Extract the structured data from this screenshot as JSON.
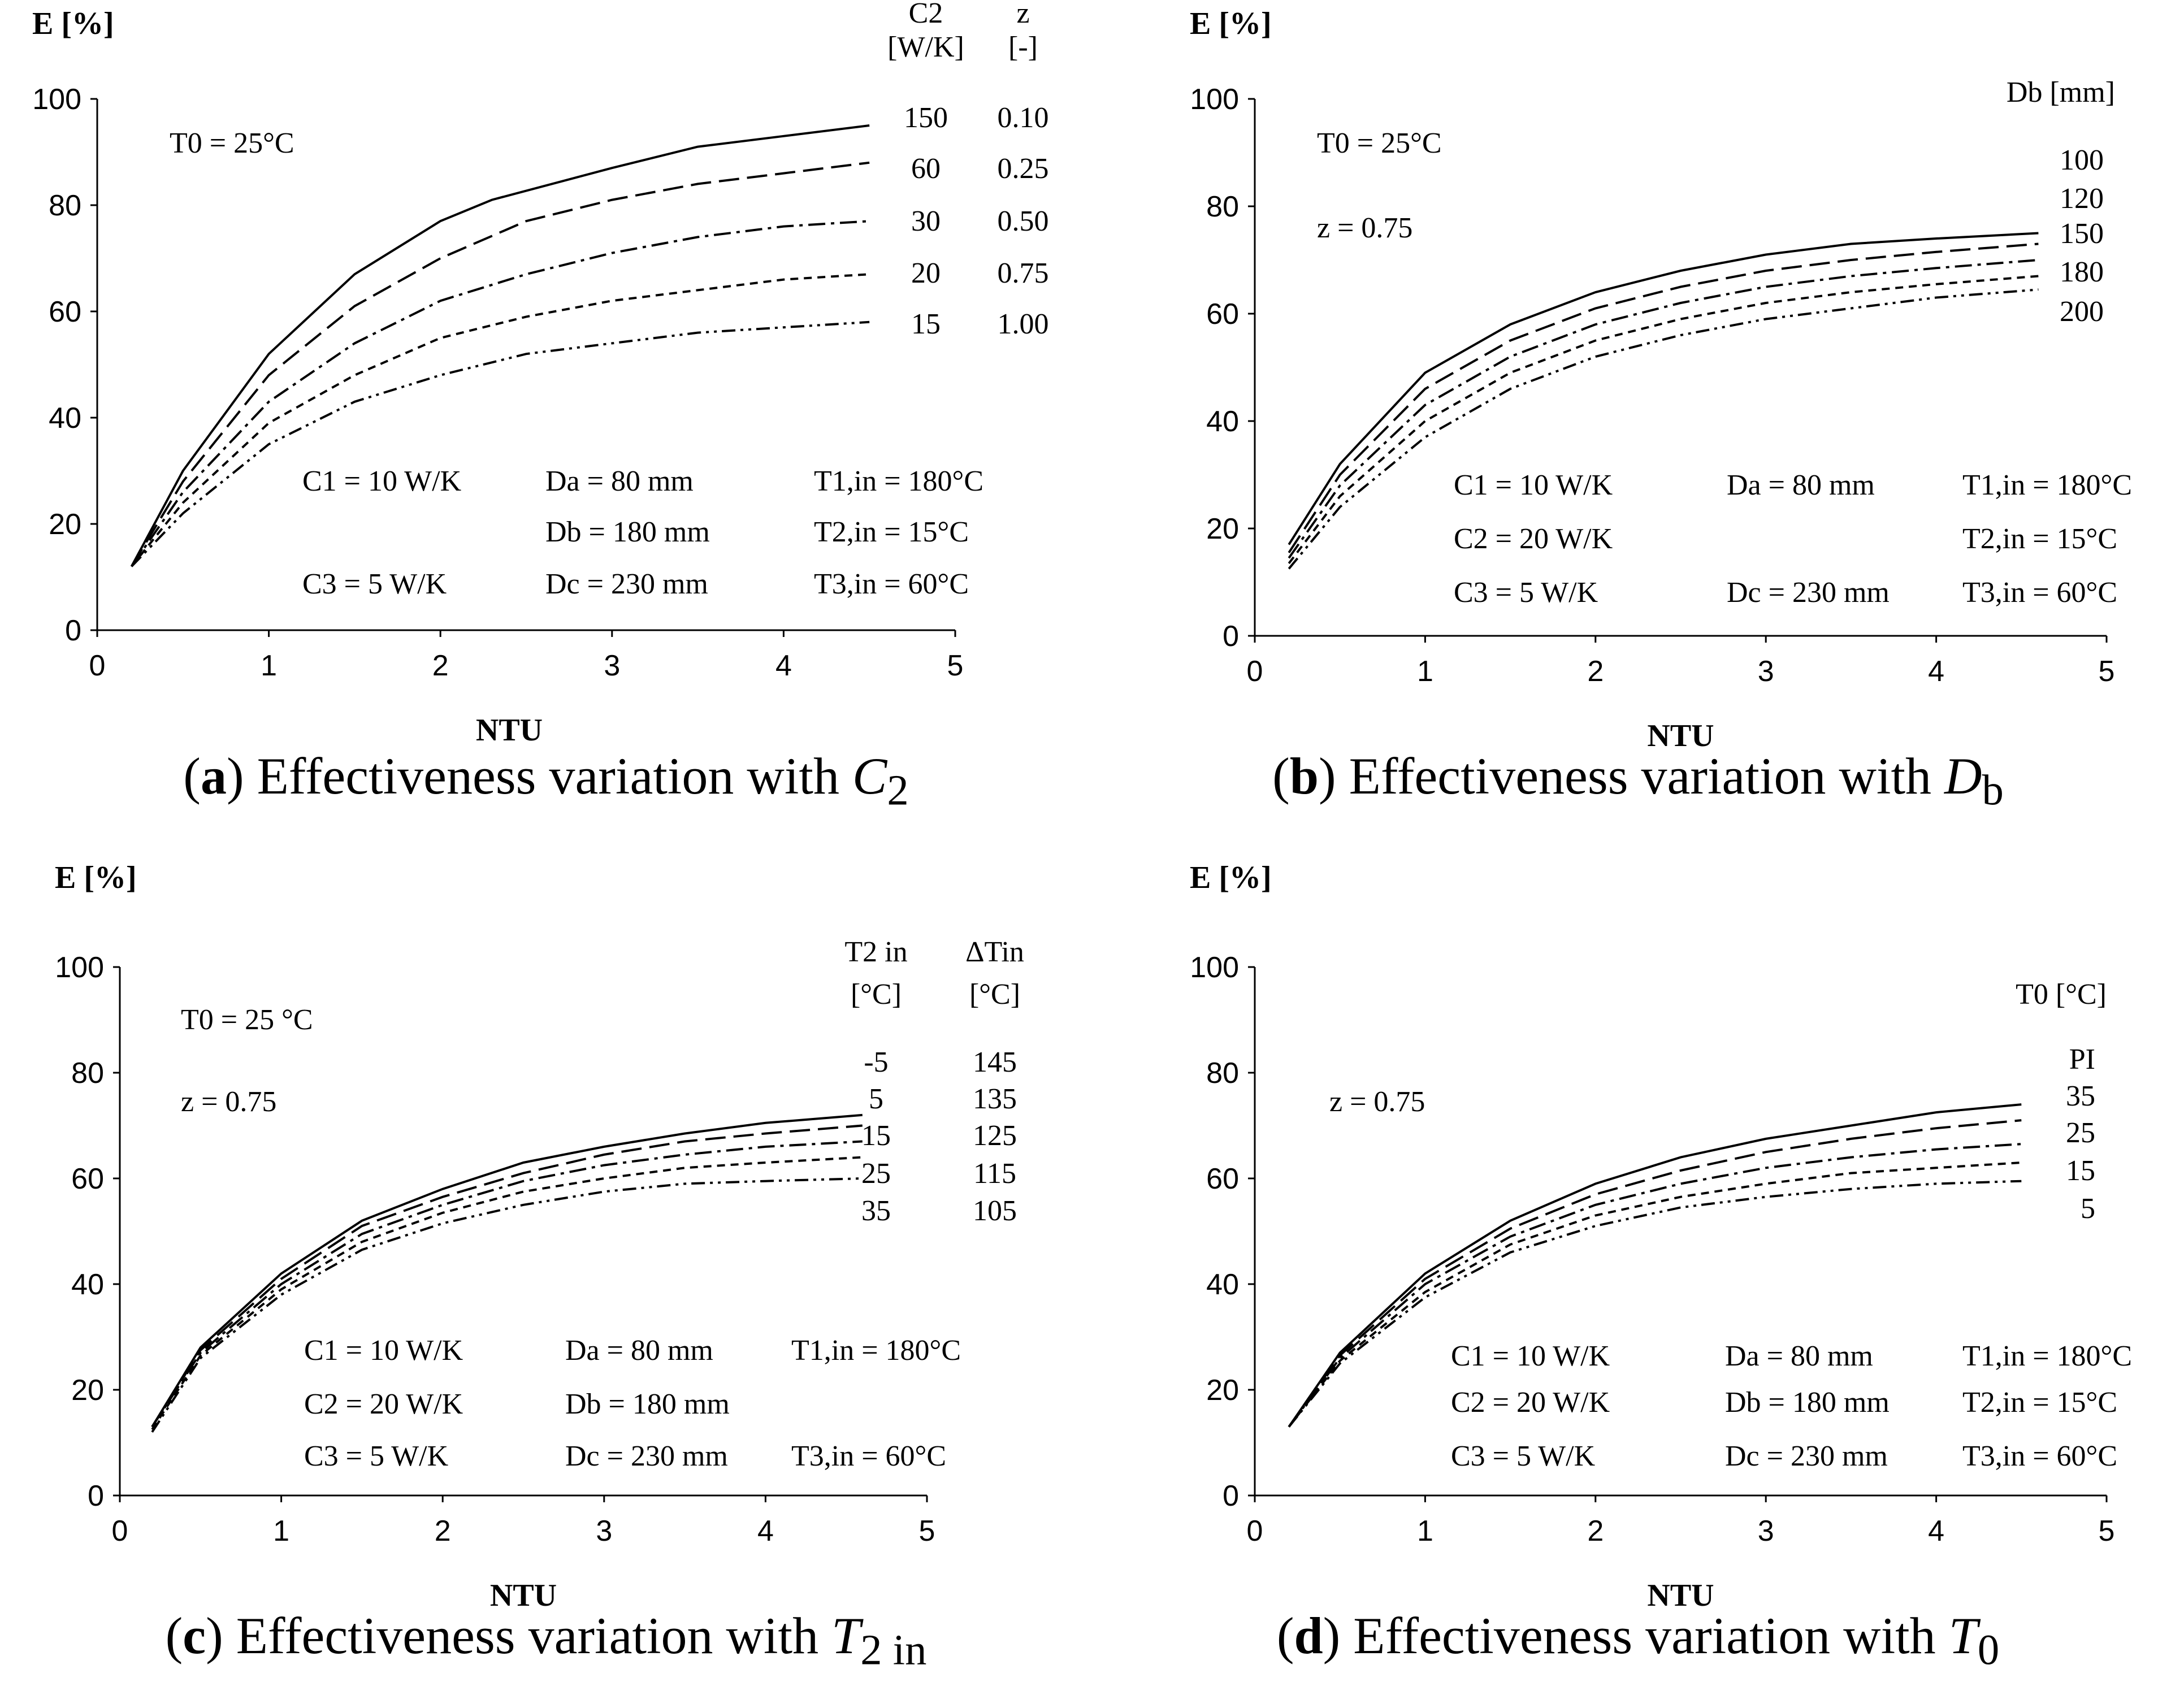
{
  "chart_data": [
    {
      "type": "line",
      "panel": "a",
      "caption": {
        "letter": "a",
        "text": "Effectiveness variation with ",
        "symbol": "C",
        "sub": "2"
      },
      "ylabel": "E [%]",
      "xlabel": "NTU",
      "xlim": [
        0,
        5
      ],
      "ylim": [
        0,
        100
      ],
      "xticks": [
        "0",
        "1",
        "2",
        "3",
        "4",
        "5"
      ],
      "yticks": [
        "0",
        "20",
        "40",
        "60",
        "80",
        "100"
      ],
      "legend_headers": [
        [
          "C2",
          "[W/K]"
        ],
        [
          "z",
          "[-]"
        ]
      ],
      "legend_rows": [
        [
          "150",
          "0.10"
        ],
        [
          "60",
          "0.25"
        ],
        [
          "30",
          "0.50"
        ],
        [
          "20",
          "0.75"
        ],
        [
          "15",
          "1.00"
        ]
      ],
      "notes_top": [
        "T0 = 25°C"
      ],
      "notes_bottom": [
        [
          "C1 = 10 W/K",
          "Da =   80 mm",
          "T1,in = 180°C"
        ],
        [
          "",
          "Db = 180 mm",
          "T2,in =   15°C"
        ],
        [
          "C3 =   5 W/K",
          "Dc = 230 mm",
          "T3,in =   60°C"
        ]
      ],
      "series": [
        {
          "dash": "solid",
          "x": [
            0.2,
            0.5,
            1.0,
            1.5,
            2.0,
            2.3,
            3.0,
            3.5,
            4.0,
            4.5
          ],
          "y": [
            12,
            30,
            52,
            67,
            77,
            81,
            87,
            91,
            93,
            95
          ]
        },
        {
          "dash": "long-dash",
          "x": [
            0.2,
            0.5,
            1.0,
            1.5,
            2.0,
            2.5,
            3.0,
            3.5,
            4.0,
            4.5
          ],
          "y": [
            12,
            28,
            48,
            61,
            70,
            77,
            81,
            84,
            86,
            88
          ]
        },
        {
          "dash": "dash-dot",
          "x": [
            0.2,
            0.5,
            1.0,
            1.5,
            2.0,
            2.5,
            3.0,
            3.5,
            4.0,
            4.5
          ],
          "y": [
            12,
            26,
            43,
            54,
            62,
            67,
            71,
            74,
            76,
            77
          ]
        },
        {
          "dash": "short-dash",
          "x": [
            0.2,
            0.5,
            1.0,
            1.5,
            2.0,
            2.5,
            3.0,
            3.5,
            4.0,
            4.5
          ],
          "y": [
            12,
            24,
            39,
            48,
            55,
            59,
            62,
            64,
            66,
            67
          ]
        },
        {
          "dash": "dash-dot-dot",
          "x": [
            0.2,
            0.5,
            1.0,
            1.5,
            2.0,
            2.5,
            3.0,
            3.5,
            4.0,
            4.5
          ],
          "y": [
            12,
            22,
            35,
            43,
            48,
            52,
            54,
            56,
            57,
            58
          ]
        }
      ]
    },
    {
      "type": "line",
      "panel": "b",
      "caption": {
        "letter": "b",
        "text": "Effectiveness variation with ",
        "symbol": "D",
        "sub": "b"
      },
      "ylabel": "E [%]",
      "xlabel": "NTU",
      "xlim": [
        0,
        5
      ],
      "ylim": [
        0,
        100
      ],
      "xticks": [
        "0",
        "1",
        "2",
        "3",
        "4",
        "5"
      ],
      "yticks": [
        "0",
        "20",
        "40",
        "60",
        "80",
        "100"
      ],
      "legend_headers": [
        [
          "Db [mm]"
        ]
      ],
      "legend_rows": [
        [
          "100"
        ],
        [
          "120"
        ],
        [
          "150"
        ],
        [
          "180"
        ],
        [
          "200"
        ]
      ],
      "notes_top": [
        "T0 = 25°C",
        "z = 0.75"
      ],
      "notes_bottom": [
        [
          "C1 = 10 W/K",
          "Da = 80 mm",
          "T1,in = 180°C"
        ],
        [
          "C2 = 20 W/K",
          "",
          "T2,in =   15°C"
        ],
        [
          "C3 =  5  W/K",
          "Dc = 230 mm",
          "T3,in =   60°C"
        ]
      ],
      "series": [
        {
          "dash": "solid",
          "x": [
            0.2,
            0.5,
            1.0,
            1.5,
            2.0,
            2.5,
            3.0,
            3.5,
            4.0,
            4.6
          ],
          "y": [
            17,
            32,
            49,
            58,
            64,
            68,
            71,
            73,
            74,
            75
          ]
        },
        {
          "dash": "long-dash",
          "x": [
            0.2,
            0.5,
            1.0,
            1.5,
            2.0,
            2.5,
            3.0,
            3.5,
            4.0,
            4.6
          ],
          "y": [
            15.5,
            30,
            46,
            55,
            61,
            65,
            68,
            70,
            71.5,
            73
          ]
        },
        {
          "dash": "dash-dot",
          "x": [
            0.2,
            0.5,
            1.0,
            1.5,
            2.0,
            2.5,
            3.0,
            3.5,
            4.0,
            4.6
          ],
          "y": [
            14.5,
            28,
            43,
            52,
            58,
            62,
            65,
            67,
            68.5,
            70
          ]
        },
        {
          "dash": "short-dash",
          "x": [
            0.2,
            0.5,
            1.0,
            1.5,
            2.0,
            2.5,
            3.0,
            3.5,
            4.0,
            4.6
          ],
          "y": [
            13.5,
            26,
            40,
            49,
            55,
            59,
            62,
            64,
            65.5,
            67
          ]
        },
        {
          "dash": "dash-dot-dot",
          "x": [
            0.2,
            0.5,
            1.0,
            1.5,
            2.0,
            2.5,
            3.0,
            3.5,
            4.0,
            4.6
          ],
          "y": [
            12.5,
            24,
            37,
            46,
            52,
            56,
            59,
            61,
            63,
            64.5
          ]
        }
      ]
    },
    {
      "type": "line",
      "panel": "c",
      "caption": {
        "letter": "c",
        "text": "Effectiveness variation with ",
        "symbol": "T",
        "sub": "2 in"
      },
      "ylabel": "E [%]",
      "xlabel": "NTU",
      "xlim": [
        0,
        5
      ],
      "ylim": [
        0,
        100
      ],
      "xticks": [
        "0",
        "1",
        "2",
        "3",
        "4",
        "5"
      ],
      "yticks": [
        "0",
        "20",
        "40",
        "60",
        "80",
        "100"
      ],
      "legend_headers": [
        [
          "T2 in",
          "[°C]"
        ],
        [
          "ΔTin",
          "[°C]"
        ]
      ],
      "legend_rows": [
        [
          "-5",
          "145"
        ],
        [
          "5",
          "135"
        ],
        [
          "15",
          "125"
        ],
        [
          "25",
          "115"
        ],
        [
          "35",
          "105"
        ]
      ],
      "notes_top": [
        "T0 = 25 °C",
        "z = 0.75"
      ],
      "notes_bottom": [
        [
          "C1 = 10 W/K",
          "Da =   80 mm",
          "T1,in = 180°C"
        ],
        [
          "C2 = 20 W/K",
          "Db = 180 mm",
          ""
        ],
        [
          "C3 =   5 W/K",
          "Dc = 230 mm",
          "T3,in =   60°C"
        ]
      ],
      "series": [
        {
          "dash": "solid",
          "x": [
            0.2,
            0.5,
            1.0,
            1.5,
            2.0,
            2.5,
            3.0,
            3.5,
            4.0,
            4.6
          ],
          "y": [
            13,
            28,
            42,
            52,
            58,
            63,
            66,
            68.5,
            70.5,
            72
          ]
        },
        {
          "dash": "long-dash",
          "x": [
            0.2,
            0.5,
            1.0,
            1.5,
            2.0,
            2.5,
            3.0,
            3.5,
            4.0,
            4.6
          ],
          "y": [
            13,
            27.5,
            41,
            51,
            56.5,
            61,
            64.5,
            67,
            68.5,
            70
          ]
        },
        {
          "dash": "dash-dot",
          "x": [
            0.2,
            0.5,
            1.0,
            1.5,
            2.0,
            2.5,
            3.0,
            3.5,
            4.0,
            4.6
          ],
          "y": [
            13,
            27,
            40,
            49.5,
            55,
            59.5,
            62.5,
            64.5,
            66,
            67
          ]
        },
        {
          "dash": "short-dash",
          "x": [
            0.2,
            0.5,
            1.0,
            1.5,
            2.0,
            2.5,
            3.0,
            3.5,
            4.0,
            4.6
          ],
          "y": [
            12.5,
            26.5,
            39,
            48,
            53.5,
            57.5,
            60,
            62,
            63,
            64
          ]
        },
        {
          "dash": "dash-dot-dot",
          "x": [
            0.2,
            0.5,
            1.0,
            1.5,
            2.0,
            2.5,
            3.0,
            3.5,
            4.0,
            4.6
          ],
          "y": [
            12,
            26,
            38,
            46.5,
            51.5,
            55,
            57.5,
            59,
            59.5,
            60
          ]
        }
      ]
    },
    {
      "type": "line",
      "panel": "d",
      "caption": {
        "letter": "d",
        "text": "Effectiveness variation with ",
        "symbol": "T",
        "sub": "0"
      },
      "ylabel": "E [%]",
      "xlabel": "NTU",
      "xlim": [
        0,
        5
      ],
      "ylim": [
        0,
        100
      ],
      "xticks": [
        "0",
        "1",
        "2",
        "3",
        "4",
        "5"
      ],
      "yticks": [
        "0",
        "20",
        "40",
        "60",
        "80",
        "100"
      ],
      "legend_headers": [
        [
          "T0 [°C]"
        ]
      ],
      "legend_rows": [
        [
          "PI"
        ],
        [
          "35"
        ],
        [
          "25"
        ],
        [
          "15"
        ],
        [
          "5"
        ]
      ],
      "notes_top": [
        "z = 0.75"
      ],
      "notes_bottom": [
        [
          "C1 = 10 W/K",
          "Da =   80 mm",
          "T1,in = 180°C"
        ],
        [
          "C2 = 20 W/K",
          "Db = 180 mm",
          "T2,in =   15°C"
        ],
        [
          "C3 =   5 W/K",
          "Dc = 230 mm",
          "T3,in =   60°C"
        ]
      ],
      "series": [
        {
          "dash": "solid",
          "x": [
            0.2,
            0.5,
            1.0,
            1.5,
            2.0,
            2.5,
            3.0,
            3.5,
            4.0,
            4.5
          ],
          "y": [
            13,
            27,
            42,
            52,
            59,
            64,
            67.5,
            70,
            72.5,
            74
          ]
        },
        {
          "dash": "long-dash",
          "x": [
            0.2,
            0.5,
            1.0,
            1.5,
            2.0,
            2.5,
            3.0,
            3.5,
            4.0,
            4.5
          ],
          "y": [
            13,
            26.5,
            41,
            50.5,
            57,
            61.5,
            65,
            67.5,
            69.5,
            71
          ]
        },
        {
          "dash": "dash-dot",
          "x": [
            0.2,
            0.5,
            1.0,
            1.5,
            2.0,
            2.5,
            3.0,
            3.5,
            4.0,
            4.5
          ],
          "y": [
            13,
            26,
            40,
            49,
            55,
            59,
            62,
            64,
            65.5,
            66.5
          ]
        },
        {
          "dash": "short-dash",
          "x": [
            0.2,
            0.5,
            1.0,
            1.5,
            2.0,
            2.5,
            3.0,
            3.5,
            4.0,
            4.5
          ],
          "y": [
            13,
            25.5,
            38.5,
            47.5,
            53,
            56.5,
            59,
            61,
            62,
            63
          ]
        },
        {
          "dash": "dash-dot-dot",
          "x": [
            0.2,
            0.5,
            1.0,
            1.5,
            2.0,
            2.5,
            3.0,
            3.5,
            4.0,
            4.5
          ],
          "y": [
            13,
            25,
            37.5,
            46,
            51,
            54.5,
            56.5,
            58,
            59,
            59.5
          ]
        }
      ]
    }
  ]
}
